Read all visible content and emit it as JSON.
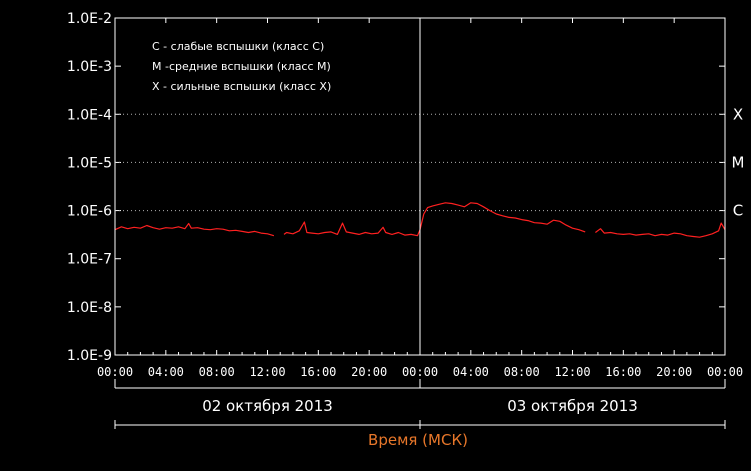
{
  "chart_data": {
    "type": "line",
    "xlabel": "Время (МСК)",
    "y_scale": "log",
    "ylim": [
      "1.0E-9",
      "1.0E-2"
    ],
    "y_ticks": [
      "1.0E-2",
      "1.0E-3",
      "1.0E-4",
      "1.0E-5",
      "1.0E-6",
      "1.0E-7",
      "1.0E-8",
      "1.0E-9"
    ],
    "x_ticks": [
      "00:00",
      "04:00",
      "08:00",
      "12:00",
      "16:00",
      "20:00",
      "00:00",
      "04:00",
      "08:00",
      "12:00",
      "16:00",
      "20:00",
      "00:00"
    ],
    "x_range_hours": [
      0,
      48
    ],
    "dates": [
      {
        "label": "02 октября 2013",
        "from_hour": 0,
        "to_hour": 24
      },
      {
        "label": "03 октября 2013",
        "from_hour": 24,
        "to_hour": 48
      }
    ],
    "grid": "dotted horizontal at X, M, C levels",
    "legend_position": "top-left",
    "legend": [
      "C - слабые вспышки (класс С)",
      "M -средние вспышки (класс М)",
      "X - сильные вспышки (класс Х)"
    ],
    "class_levels": [
      {
        "label": "X",
        "value": 0.0001
      },
      {
        "label": "M",
        "value": 1e-05
      },
      {
        "label": "C",
        "value": 1e-06
      }
    ],
    "colors": {
      "series": "#ff2020",
      "axes": "#ffffff",
      "grid": "#b0b0b0",
      "xlabel": "#e8772a"
    },
    "series": [
      {
        "segments": [
          [
            [
              0,
              4e-07
            ],
            [
              0.5,
              4.6e-07
            ],
            [
              1,
              4.2e-07
            ],
            [
              1.5,
              4.5e-07
            ],
            [
              2,
              4.3e-07
            ],
            [
              2.5,
              4.9e-07
            ],
            [
              3,
              4.4e-07
            ],
            [
              3.5,
              4.1e-07
            ],
            [
              4,
              4.4e-07
            ],
            [
              4.5,
              4.3e-07
            ],
            [
              5,
              4.6e-07
            ],
            [
              5.5,
              4.2e-07
            ],
            [
              5.8,
              5.4e-07
            ],
            [
              6,
              4.3e-07
            ],
            [
              6.5,
              4.4e-07
            ],
            [
              7,
              4.1e-07
            ],
            [
              7.5,
              4e-07
            ],
            [
              8,
              4.2e-07
            ],
            [
              8.5,
              4.1e-07
            ],
            [
              9,
              3.8e-07
            ],
            [
              9.5,
              3.9e-07
            ],
            [
              10,
              3.7e-07
            ],
            [
              10.5,
              3.5e-07
            ],
            [
              11,
              3.7e-07
            ],
            [
              11.5,
              3.4e-07
            ],
            [
              12,
              3.3e-07
            ],
            [
              12.5,
              3e-07
            ]
          ],
          [
            [
              13.3,
              3.2e-07
            ],
            [
              13.5,
              3.5e-07
            ],
            [
              14,
              3.3e-07
            ],
            [
              14.5,
              3.8e-07
            ],
            [
              14.9,
              5.8e-07
            ],
            [
              15.1,
              3.5e-07
            ],
            [
              15.5,
              3.4e-07
            ],
            [
              16,
              3.3e-07
            ],
            [
              16.5,
              3.5e-07
            ],
            [
              17,
              3.6e-07
            ],
            [
              17.5,
              3.2e-07
            ],
            [
              17.9,
              5.5e-07
            ],
            [
              18.2,
              3.6e-07
            ],
            [
              18.7,
              3.4e-07
            ],
            [
              19.2,
              3.2e-07
            ],
            [
              19.7,
              3.5e-07
            ],
            [
              20.2,
              3.3e-07
            ],
            [
              20.7,
              3.4e-07
            ],
            [
              21.1,
              4.5e-07
            ],
            [
              21.3,
              3.5e-07
            ],
            [
              21.8,
              3.2e-07
            ],
            [
              22.3,
              3.5e-07
            ],
            [
              22.8,
              3.1e-07
            ],
            [
              23.3,
              3.2e-07
            ],
            [
              23.8,
              3e-07
            ],
            [
              24,
              4e-07
            ]
          ],
          [
            [
              24,
              4e-07
            ],
            [
              24.3,
              8.5e-07
            ],
            [
              24.6,
              1.15e-06
            ],
            [
              25,
              1.25e-06
            ],
            [
              25.5,
              1.35e-06
            ],
            [
              26,
              1.45e-06
            ],
            [
              26.5,
              1.4e-06
            ],
            [
              27,
              1.3e-06
            ],
            [
              27.5,
              1.2e-06
            ],
            [
              28,
              1.45e-06
            ],
            [
              28.5,
              1.4e-06
            ],
            [
              29,
              1.2e-06
            ],
            [
              29.5,
              1e-06
            ],
            [
              30,
              8.5e-07
            ],
            [
              30.5,
              7.8e-07
            ],
            [
              31,
              7.2e-07
            ],
            [
              31.5,
              7e-07
            ],
            [
              32,
              6.5e-07
            ],
            [
              32.5,
              6.2e-07
            ],
            [
              33,
              5.6e-07
            ],
            [
              33.5,
              5.5e-07
            ],
            [
              34,
              5.2e-07
            ],
            [
              34.5,
              6.3e-07
            ],
            [
              35,
              6e-07
            ],
            [
              35.5,
              5e-07
            ],
            [
              36,
              4.3e-07
            ],
            [
              36.5,
              4e-07
            ],
            [
              37,
              3.6e-07
            ]
          ],
          [
            [
              37.8,
              3.5e-07
            ],
            [
              38.2,
              4.2e-07
            ],
            [
              38.5,
              3.4e-07
            ],
            [
              39,
              3.5e-07
            ],
            [
              39.5,
              3.3e-07
            ],
            [
              40,
              3.2e-07
            ],
            [
              40.5,
              3.3e-07
            ],
            [
              41,
              3.1e-07
            ],
            [
              41.5,
              3.2e-07
            ],
            [
              42,
              3.3e-07
            ],
            [
              42.5,
              3e-07
            ],
            [
              43,
              3.2e-07
            ],
            [
              43.5,
              3.1e-07
            ],
            [
              44,
              3.4e-07
            ],
            [
              44.5,
              3.3e-07
            ],
            [
              45,
              3e-07
            ],
            [
              45.5,
              2.9e-07
            ],
            [
              46,
              2.8e-07
            ],
            [
              46.5,
              3e-07
            ],
            [
              47,
              3.3e-07
            ],
            [
              47.5,
              3.8e-07
            ],
            [
              47.7,
              5.5e-07
            ],
            [
              48,
              4e-07
            ]
          ]
        ]
      }
    ]
  }
}
